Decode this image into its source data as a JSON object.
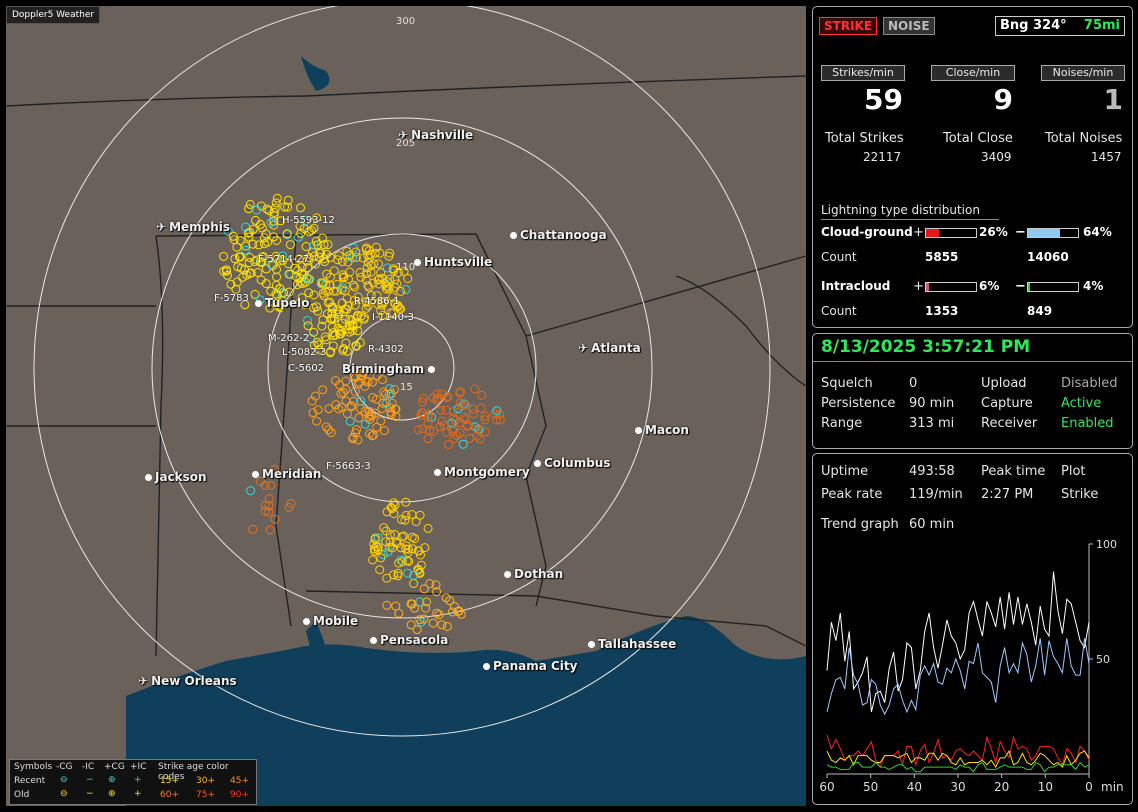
{
  "app_title": "Doppler5 Weather",
  "colors": {
    "map_land": "#6a625a",
    "water": "#0f3f5a",
    "strike_recent": "#ffe000",
    "strike_mid": "#ff9e1a",
    "strike_old": "#e06a1e",
    "cg_pos_bar": "#e51818",
    "cg_neg_bar": "#8cc8f0",
    "ic_pos_bar": "#e05090",
    "ic_neg_bar": "#3ad23a",
    "accent_green": "#2ee85a"
  },
  "map": {
    "range_rings": [
      "300",
      "205",
      "110",
      "15"
    ],
    "cities": [
      {
        "name": "Nashville",
        "icon": "airport-icon"
      },
      {
        "name": "Memphis",
        "icon": "airport-icon"
      },
      {
        "name": "Chattanooga",
        "icon": "city-dot"
      },
      {
        "name": "Huntsville",
        "icon": "city-dot"
      },
      {
        "name": "Tupelo",
        "icon": "city-dot"
      },
      {
        "name": "Atlanta",
        "icon": "airport-icon"
      },
      {
        "name": "Birmingham",
        "icon": "city-dot"
      },
      {
        "name": "Macon",
        "icon": "city-dot"
      },
      {
        "name": "Jackson",
        "icon": "city-dot"
      },
      {
        "name": "Meridian",
        "icon": "city-dot"
      },
      {
        "name": "Montgomery",
        "icon": "city-dot"
      },
      {
        "name": "Columbus",
        "icon": "city-dot"
      },
      {
        "name": "Dothan",
        "icon": "city-dot"
      },
      {
        "name": "Mobile",
        "icon": "city-dot"
      },
      {
        "name": "Pensacola",
        "icon": "city-dot"
      },
      {
        "name": "Tallahassee",
        "icon": "city-dot"
      },
      {
        "name": "Panama City",
        "icon": "city-dot"
      },
      {
        "name": "New Orleans",
        "icon": "airport-icon"
      }
    ],
    "storm_labels": [
      "H-5593-12",
      "F-5714-27",
      "F-5783",
      "R-4586-1",
      "I-1140-3",
      "M-262-2",
      "L-5082-3",
      "R-4302",
      "C-5602",
      "F-5663-3",
      "1",
      "15"
    ]
  },
  "legend": {
    "symbols_label": "Symbols",
    "cols": [
      "-CG",
      "-IC",
      "+CG",
      "+IC"
    ],
    "age_label": "Strike age color codes",
    "rows": [
      {
        "label": "Recent",
        "glyphs": [
          "⊖",
          "−",
          "⊕",
          "+"
        ],
        "ages": [
          "15+",
          "30+",
          "45+"
        ]
      },
      {
        "label": "Old",
        "glyphs": [
          "⊖",
          "−",
          "⊕",
          "+"
        ],
        "ages": [
          "60+",
          "75+",
          "90+"
        ]
      }
    ]
  },
  "top": {
    "strike_btn": "STRIKE",
    "noise_btn": "NOISE",
    "bearing": "Bng 324°",
    "distance": "75mi",
    "rate_headers": [
      "Strikes/min",
      "Close/min",
      "Noises/min"
    ],
    "rates": [
      "59",
      "9",
      "1"
    ],
    "total_labels": [
      "Total Strikes",
      "Total Close",
      "Total Noises"
    ],
    "totals": [
      "22117",
      "3409",
      "1457"
    ],
    "dist_title": "Lightning type distribution",
    "cg": {
      "label": "Cloud-ground",
      "pos_sign": "+",
      "neg_sign": "−",
      "pos_pct": "26%",
      "neg_pct": "64%",
      "pos_frac": 0.26,
      "neg_frac": 0.64,
      "count_label": "Count",
      "pos_count": "5855",
      "neg_count": "14060"
    },
    "ic": {
      "label": "Intracloud",
      "pos_sign": "+",
      "neg_sign": "−",
      "pos_pct": "6%",
      "neg_pct": "4%",
      "pos_frac": 0.06,
      "neg_frac": 0.04,
      "count_label": "Count",
      "pos_count": "1353",
      "neg_count": "849"
    }
  },
  "status": {
    "datetime": "8/13/2025 3:57:21 PM",
    "rows": [
      [
        "Squelch",
        "0",
        "Upload",
        "Disabled"
      ],
      [
        "Persistence",
        "90 min",
        "Capture",
        "Active"
      ],
      [
        "Range",
        "313 mi",
        "Receiver",
        "Enabled"
      ]
    ]
  },
  "stats": {
    "uptime_label": "Uptime",
    "uptime": "493:58",
    "peak_time_label": "Peak time",
    "plot_label": "Plot",
    "peak_rate_label": "Peak rate",
    "peak_rate": "119/min",
    "peak_time": "2:27 PM",
    "plot": "Strike",
    "trend_label": "Trend graph",
    "trend_value": "60 min"
  },
  "chart_data": {
    "type": "line",
    "xlabel": "min",
    "x_ticks": [
      "60",
      "50",
      "40",
      "30",
      "20",
      "10",
      "0"
    ],
    "y_ticks": [
      "100",
      "50"
    ],
    "ylim": [
      0,
      100
    ],
    "series": [
      {
        "color": "#ffffff",
        "values": [
          45,
          66,
          58,
          70,
          49,
          62,
          37,
          40,
          44,
          51,
          27,
          35,
          36,
          31,
          46,
          53,
          36,
          41,
          57,
          55,
          37,
          45,
          62,
          70,
          55,
          46,
          56,
          67,
          60,
          57,
          50,
          54,
          70,
          75,
          67,
          60,
          75,
          70,
          64,
          77,
          63,
          79,
          65,
          77,
          65,
          74,
          66,
          56,
          73,
          63,
          60,
          88,
          71,
          61,
          76,
          74,
          66,
          58,
          55,
          66
        ]
      },
      {
        "color": "#9cc8ff",
        "values": [
          27,
          35,
          41,
          42,
          37,
          55,
          43,
          39,
          30,
          31,
          41,
          39,
          30,
          26,
          30,
          37,
          39,
          32,
          27,
          32,
          28,
          43,
          47,
          43,
          48,
          40,
          39,
          46,
          44,
          50,
          45,
          37,
          49,
          48,
          57,
          44,
          42,
          40,
          31,
          47,
          55,
          44,
          48,
          44,
          57,
          52,
          40,
          47,
          59,
          43,
          58,
          51,
          48,
          44,
          59,
          47,
          43,
          43,
          59,
          48
        ]
      },
      {
        "color": "#ff2020",
        "values": [
          17,
          11,
          15,
          11,
          6,
          8,
          8,
          10,
          8,
          11,
          14,
          6,
          3,
          8,
          8,
          8,
          10,
          4,
          12,
          12,
          4,
          10,
          13,
          5,
          9,
          15,
          7,
          8,
          6,
          10,
          11,
          9,
          8,
          10,
          8,
          6,
          16,
          11,
          5,
          14,
          10,
          7,
          16,
          11,
          12,
          11,
          6,
          8,
          12,
          12,
          12,
          11,
          7,
          4,
          11,
          9,
          5,
          12,
          10,
          6
        ]
      },
      {
        "color": "#ffe000",
        "values": [
          10,
          6,
          5,
          7,
          6,
          8,
          4,
          8,
          8,
          8,
          6,
          5,
          5,
          8,
          8,
          8,
          7,
          8,
          9,
          5,
          7,
          7,
          6,
          9,
          9,
          6,
          9,
          8,
          5,
          4,
          7,
          4,
          5,
          5,
          5,
          6,
          4,
          6,
          3,
          7,
          7,
          10,
          4,
          5,
          9,
          5,
          4,
          6,
          9,
          8,
          6,
          4,
          5,
          3,
          8,
          4,
          6,
          9,
          10,
          7
        ]
      },
      {
        "color": "#30d030",
        "values": [
          4,
          3,
          3,
          2,
          2,
          2,
          5,
          5,
          3,
          3,
          3,
          5,
          3,
          3,
          2,
          3,
          4,
          4,
          2,
          3,
          1,
          1,
          3,
          3,
          3,
          3,
          3,
          3,
          3,
          2,
          4,
          3,
          3,
          1,
          4,
          5,
          2,
          2,
          2,
          3,
          4,
          3,
          3,
          3,
          3,
          2,
          2,
          5,
          4,
          1,
          3,
          3,
          4,
          4,
          4,
          4,
          2,
          5,
          3,
          4
        ]
      }
    ]
  }
}
